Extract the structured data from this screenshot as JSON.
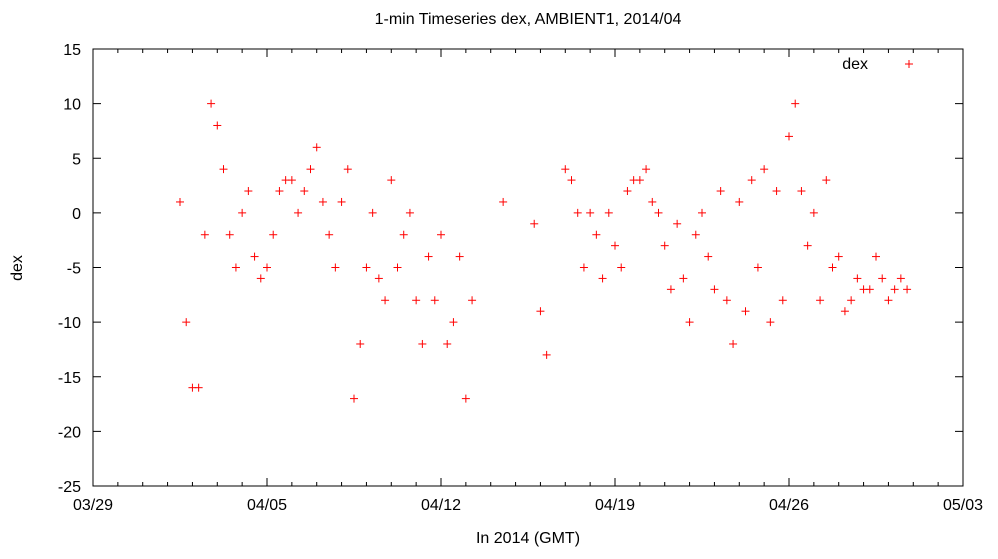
{
  "chart_data": {
    "type": "scatter",
    "title": "1-min Timeseries dex, AMBIENT1, 2014/04",
    "xlabel": "In 2014 (GMT)",
    "ylabel": "dex",
    "xlim": [
      "2014-03-29",
      "2014-05-03"
    ],
    "ylim": [
      -25,
      15
    ],
    "x_tick_labels": [
      "03/29",
      "04/05",
      "04/12",
      "04/19",
      "04/26",
      "05/03"
    ],
    "y_tick_labels": [
      "-25",
      "-20",
      "-15",
      "-10",
      "-5",
      "0",
      "5",
      "10",
      "15"
    ],
    "grid": false,
    "legend": "top-right",
    "marker": "plus",
    "series": [
      {
        "name": "dex",
        "color": "#ff0000",
        "x": [
          "2014-04-01T12:00",
          "2014-04-01T18:00",
          "2014-04-02T00:00",
          "2014-04-02T06:00",
          "2014-04-02T12:00",
          "2014-04-02T18:00",
          "2014-04-03T00:00",
          "2014-04-03T06:00",
          "2014-04-03T12:00",
          "2014-04-03T18:00",
          "2014-04-04T00:00",
          "2014-04-04T06:00",
          "2014-04-04T12:00",
          "2014-04-04T18:00",
          "2014-04-05T00:00",
          "2014-04-05T06:00",
          "2014-04-05T12:00",
          "2014-04-05T18:00",
          "2014-04-06T00:00",
          "2014-04-06T06:00",
          "2014-04-06T12:00",
          "2014-04-06T18:00",
          "2014-04-07T00:00",
          "2014-04-07T06:00",
          "2014-04-07T12:00",
          "2014-04-07T18:00",
          "2014-04-08T00:00",
          "2014-04-08T06:00",
          "2014-04-08T12:00",
          "2014-04-08T18:00",
          "2014-04-09T00:00",
          "2014-04-09T06:00",
          "2014-04-09T12:00",
          "2014-04-09T18:00",
          "2014-04-10T00:00",
          "2014-04-10T06:00",
          "2014-04-10T12:00",
          "2014-04-10T18:00",
          "2014-04-11T00:00",
          "2014-04-11T06:00",
          "2014-04-11T12:00",
          "2014-04-11T18:00",
          "2014-04-12T00:00",
          "2014-04-12T06:00",
          "2014-04-12T12:00",
          "2014-04-12T18:00",
          "2014-04-13T00:00",
          "2014-04-13T06:00",
          "2014-04-14T12:00",
          "2014-04-15T18:00",
          "2014-04-16T00:00",
          "2014-04-16T06:00",
          "2014-04-17T00:00",
          "2014-04-17T06:00",
          "2014-04-17T12:00",
          "2014-04-17T18:00",
          "2014-04-18T00:00",
          "2014-04-18T06:00",
          "2014-04-18T12:00",
          "2014-04-18T18:00",
          "2014-04-19T00:00",
          "2014-04-19T06:00",
          "2014-04-19T12:00",
          "2014-04-19T18:00",
          "2014-04-20T00:00",
          "2014-04-20T06:00",
          "2014-04-20T12:00",
          "2014-04-20T18:00",
          "2014-04-21T00:00",
          "2014-04-21T06:00",
          "2014-04-21T12:00",
          "2014-04-21T18:00",
          "2014-04-22T00:00",
          "2014-04-22T06:00",
          "2014-04-22T12:00",
          "2014-04-22T18:00",
          "2014-04-23T00:00",
          "2014-04-23T06:00",
          "2014-04-23T12:00",
          "2014-04-23T18:00",
          "2014-04-24T00:00",
          "2014-04-24T06:00",
          "2014-04-24T12:00",
          "2014-04-24T18:00",
          "2014-04-25T00:00",
          "2014-04-25T06:00",
          "2014-04-25T12:00",
          "2014-04-25T18:00",
          "2014-04-26T00:00",
          "2014-04-26T06:00",
          "2014-04-26T12:00",
          "2014-04-26T18:00",
          "2014-04-27T00:00",
          "2014-04-27T06:00",
          "2014-04-27T12:00",
          "2014-04-27T18:00",
          "2014-04-28T00:00",
          "2014-04-28T06:00",
          "2014-04-28T12:00",
          "2014-04-28T18:00",
          "2014-04-29T00:00",
          "2014-04-29T06:00",
          "2014-04-29T12:00",
          "2014-04-29T18:00",
          "2014-04-30T00:00",
          "2014-04-30T06:00",
          "2014-04-30T12:00",
          "2014-04-30T18:00"
        ],
        "y": [
          1,
          -10,
          -16,
          -16,
          -2,
          10,
          8,
          4,
          -2,
          -5,
          0,
          2,
          -4,
          -6,
          -5,
          -2,
          2,
          3,
          3,
          0,
          2,
          4,
          6,
          1,
          -2,
          -5,
          1,
          4,
          -17,
          -12,
          -5,
          0,
          -6,
          -8,
          3,
          -5,
          -2,
          0,
          -8,
          -12,
          -4,
          -8,
          -2,
          -12,
          -10,
          -4,
          -17,
          -8,
          1,
          -1,
          -9,
          -13,
          4,
          3,
          0,
          -5,
          0,
          -2,
          -6,
          0,
          -3,
          -5,
          2,
          3,
          3,
          4,
          1,
          0,
          -3,
          -7,
          -1,
          -6,
          -10,
          -2,
          0,
          -4,
          -7,
          2,
          -8,
          -12,
          1,
          -9,
          3,
          -5,
          4,
          -10,
          2,
          -8,
          7,
          10,
          2,
          -3,
          0,
          -8,
          3,
          -5,
          -4,
          -9,
          -8,
          -6,
          -7,
          -7,
          -4,
          -6,
          -8,
          -7,
          -6,
          -7
        ]
      }
    ]
  }
}
